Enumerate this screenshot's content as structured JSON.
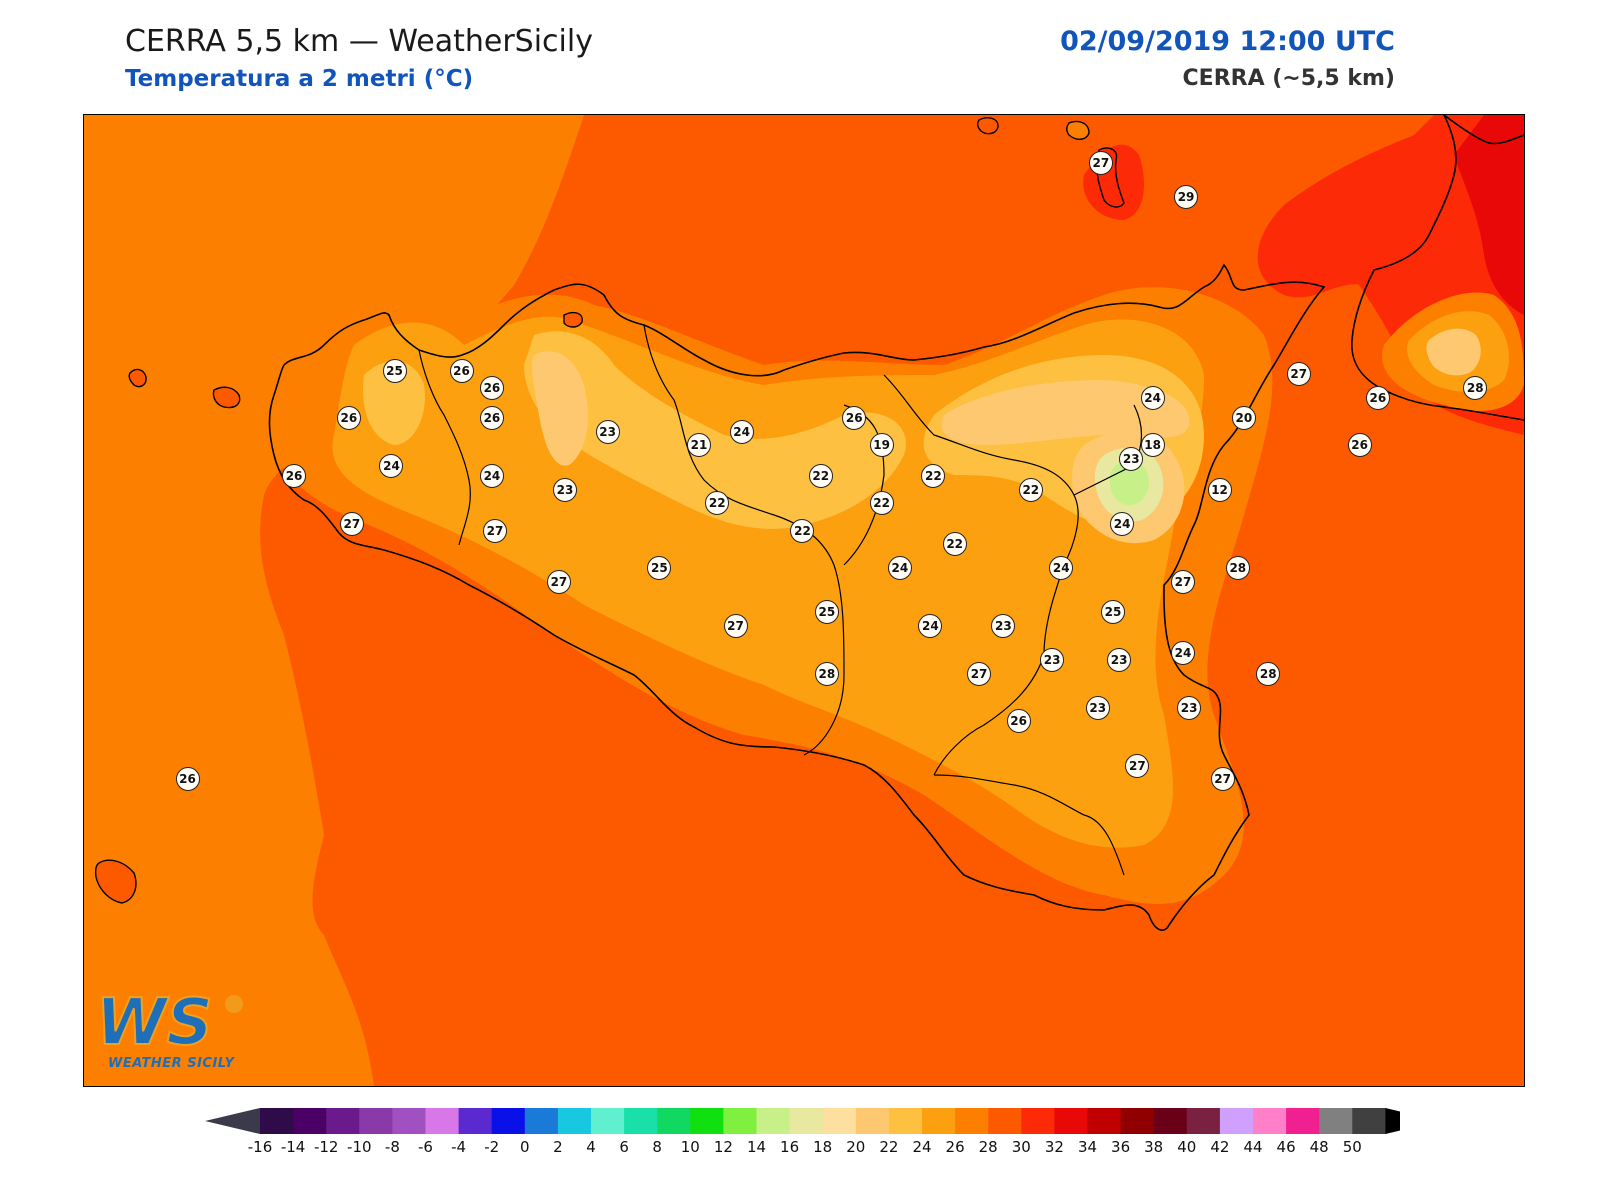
{
  "header": {
    "title": "CERRA 5,5 km — WeatherSicily",
    "subtitle": "Temperatura a 2 metri (°C)",
    "datetime": "02/09/2019 12:00 UTC",
    "model": "CERRA (~5,5 km)"
  },
  "logo": {
    "letters": "WS",
    "text": "WEATHER SICILY"
  },
  "colorbar": {
    "ticks": [
      "-16",
      "-14",
      "-12",
      "-10",
      "-8",
      "-6",
      "-4",
      "-2",
      "0",
      "2",
      "4",
      "6",
      "8",
      "10",
      "12",
      "14",
      "16",
      "18",
      "20",
      "22",
      "24",
      "26",
      "28",
      "30",
      "32",
      "34",
      "36",
      "38",
      "40",
      "42",
      "44",
      "46",
      "48",
      "50"
    ],
    "colors": [
      "#2f0b4a",
      "#4b0066",
      "#6a1a8a",
      "#8a3aa8",
      "#a050c0",
      "#d878e8",
      "#5a2ad0",
      "#0a10e8",
      "#1a7ad8",
      "#18c8e0",
      "#60f0d0",
      "#18e0a8",
      "#10d860",
      "#10e010",
      "#80f040",
      "#c8f088",
      "#e8e8a0",
      "#fde0a0",
      "#fdc870",
      "#fdc040",
      "#fda010",
      "#fd7f00",
      "#fd5a00",
      "#fd2a08",
      "#e80808",
      "#c00000",
      "#900000",
      "#6a0018",
      "#7a2040",
      "#d0a0ff",
      "#ff80c8",
      "#f02090",
      "#808080",
      "#404040"
    ],
    "under_color": "#3a3a4a",
    "over_color": "#000000"
  },
  "stations": [
    {
      "value": "27",
      "lon": 14.94,
      "lat": 38.78
    },
    {
      "value": "29",
      "lon": 15.22,
      "lat": 38.68
    },
    {
      "value": "25",
      "lon": 12.62,
      "lat": 38.17
    },
    {
      "value": "26",
      "lon": 12.84,
      "lat": 38.17
    },
    {
      "value": "26",
      "lon": 12.94,
      "lat": 38.12
    },
    {
      "value": "28",
      "lon": 16.17,
      "lat": 38.12
    },
    {
      "value": "27",
      "lon": 15.59,
      "lat": 38.16
    },
    {
      "value": "24",
      "lon": 15.11,
      "lat": 38.09
    },
    {
      "value": "26",
      "lon": 15.85,
      "lat": 38.09
    },
    {
      "value": "26",
      "lon": 12.47,
      "lat": 38.03
    },
    {
      "value": "26",
      "lon": 12.94,
      "lat": 38.03
    },
    {
      "value": "23",
      "lon": 13.32,
      "lat": 37.99
    },
    {
      "value": "24",
      "lon": 13.76,
      "lat": 37.99
    },
    {
      "value": "26",
      "lon": 14.13,
      "lat": 38.03
    },
    {
      "value": "20",
      "lon": 15.41,
      "lat": 38.03
    },
    {
      "value": "24",
      "lon": 12.61,
      "lat": 37.89
    },
    {
      "value": "21",
      "lon": 13.62,
      "lat": 37.95
    },
    {
      "value": "19",
      "lon": 14.22,
      "lat": 37.95
    },
    {
      "value": "18",
      "lon": 15.11,
      "lat": 37.95
    },
    {
      "value": "26",
      "lon": 15.79,
      "lat": 37.95
    },
    {
      "value": "23",
      "lon": 15.04,
      "lat": 37.91
    },
    {
      "value": "26",
      "lon": 12.29,
      "lat": 37.86
    },
    {
      "value": "24",
      "lon": 12.94,
      "lat": 37.86
    },
    {
      "value": "22",
      "lon": 14.02,
      "lat": 37.86
    },
    {
      "value": "22",
      "lon": 14.39,
      "lat": 37.86
    },
    {
      "value": "23",
      "lon": 13.18,
      "lat": 37.82
    },
    {
      "value": "22",
      "lon": 14.71,
      "lat": 37.82
    },
    {
      "value": "12",
      "lon": 15.33,
      "lat": 37.82
    },
    {
      "value": "22",
      "lon": 13.68,
      "lat": 37.78
    },
    {
      "value": "22",
      "lon": 14.22,
      "lat": 37.78
    },
    {
      "value": "27",
      "lon": 12.48,
      "lat": 37.72
    },
    {
      "value": "27",
      "lon": 12.95,
      "lat": 37.7
    },
    {
      "value": "22",
      "lon": 13.96,
      "lat": 37.7
    },
    {
      "value": "24",
      "lon": 15.01,
      "lat": 37.72
    },
    {
      "value": "22",
      "lon": 14.46,
      "lat": 37.66
    },
    {
      "value": "25",
      "lon": 13.49,
      "lat": 37.59
    },
    {
      "value": "24",
      "lon": 14.28,
      "lat": 37.59
    },
    {
      "value": "24",
      "lon": 14.81,
      "lat": 37.59
    },
    {
      "value": "28",
      "lon": 15.39,
      "lat": 37.59
    },
    {
      "value": "27",
      "lon": 13.16,
      "lat": 37.55
    },
    {
      "value": "27",
      "lon": 15.21,
      "lat": 37.55
    },
    {
      "value": "25",
      "lon": 14.04,
      "lat": 37.46
    },
    {
      "value": "25",
      "lon": 14.98,
      "lat": 37.46
    },
    {
      "value": "24",
      "lon": 14.38,
      "lat": 37.42
    },
    {
      "value": "23",
      "lon": 14.62,
      "lat": 37.42
    },
    {
      "value": "27",
      "lon": 13.74,
      "lat": 37.42
    },
    {
      "value": "24",
      "lon": 15.21,
      "lat": 37.34
    },
    {
      "value": "23",
      "lon": 14.78,
      "lat": 37.32
    },
    {
      "value": "23",
      "lon": 15.0,
      "lat": 37.32
    },
    {
      "value": "28",
      "lon": 14.04,
      "lat": 37.28
    },
    {
      "value": "27",
      "lon": 14.54,
      "lat": 37.28
    },
    {
      "value": "28",
      "lon": 15.49,
      "lat": 37.28
    },
    {
      "value": "23",
      "lon": 14.93,
      "lat": 37.18
    },
    {
      "value": "23",
      "lon": 15.23,
      "lat": 37.18
    },
    {
      "value": "26",
      "lon": 14.67,
      "lat": 37.14
    },
    {
      "value": "27",
      "lon": 15.06,
      "lat": 37.01
    },
    {
      "value": "27",
      "lon": 15.34,
      "lat": 36.97
    },
    {
      "value": "26",
      "lon": 11.94,
      "lat": 36.97
    }
  ]
}
